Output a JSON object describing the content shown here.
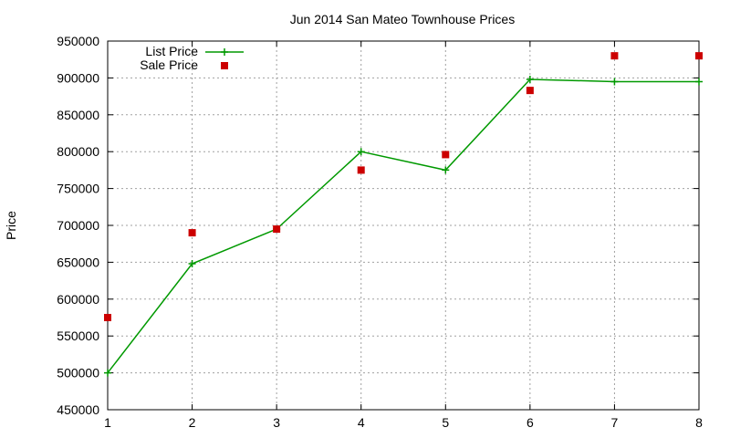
{
  "chart_data": {
    "type": "line",
    "title": "Jun 2014 San Mateo Townhouse Prices",
    "xlabel": "",
    "ylabel": "Price",
    "xlim": [
      1,
      8
    ],
    "ylim": [
      450000,
      950000
    ],
    "x_ticks": [
      "1",
      "2",
      "3",
      "4",
      "5",
      "6",
      "7",
      "8"
    ],
    "y_ticks": [
      "450000",
      "500000",
      "550000",
      "600000",
      "650000",
      "700000",
      "750000",
      "800000",
      "850000",
      "900000",
      "950000"
    ],
    "grid": true,
    "legend_position": "top-left",
    "x": [
      1,
      2,
      3,
      4,
      5,
      6,
      7,
      8
    ],
    "series": [
      {
        "name": "List Price",
        "style": "line-with-plus-markers",
        "color": "#009900",
        "values": [
          500000,
          648000,
          695000,
          800000,
          775000,
          898000,
          895000,
          895000
        ]
      },
      {
        "name": "Sale Price",
        "style": "square-markers",
        "color": "#cc0000",
        "values": [
          575000,
          690000,
          695000,
          775000,
          796000,
          883000,
          930000,
          930000
        ]
      }
    ]
  }
}
